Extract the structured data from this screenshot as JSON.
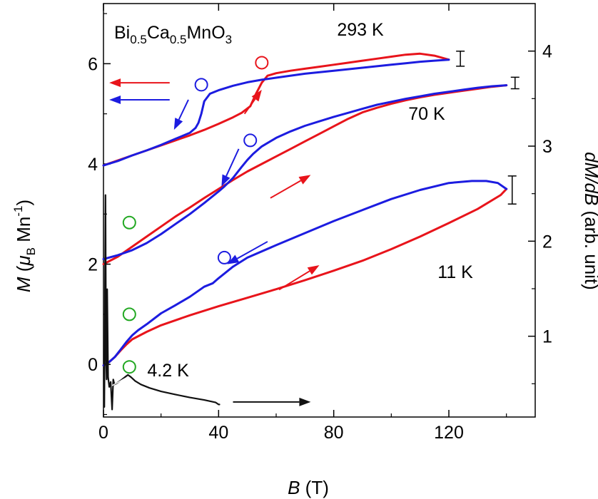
{
  "chart_data": {
    "type": "line",
    "title": "",
    "compound": {
      "base1": "Bi",
      "sub1": "0.5",
      "base2": "Ca",
      "sub2": "0.5",
      "base3": "MnO",
      "sub3": "3"
    },
    "xlabel": {
      "italic": "B",
      "rest": " (T)"
    },
    "ylabel_left": {
      "italic": "M",
      "open": " (",
      "mu": "μ",
      "mu_sub": "B",
      "unit": " Mn",
      "sup": "-1",
      "close": ")"
    },
    "ylabel_right": {
      "italic": "dM/dB",
      "rest": " (arb. unit)"
    },
    "xlim": [
      0,
      150
    ],
    "ylim_left": [
      -1.05,
      7.2
    ],
    "ylim_right": [
      0.15,
      4.5
    ],
    "xticks": [
      "0",
      "40",
      "80",
      "120"
    ],
    "yticks_left": [
      "0",
      "2",
      "4",
      "6"
    ],
    "yticks_right": [
      "1",
      "2",
      "3",
      "4"
    ],
    "colors": {
      "up_sweep": "#e8141b",
      "down_sweep": "#1c1ce0",
      "derivative": "#111111",
      "marker_green": "#22a822"
    },
    "series": [
      {
        "name": "293 K",
        "label": "293 K",
        "up": {
          "x": [
            0,
            5,
            10,
            15,
            20,
            25,
            30,
            35,
            40,
            45,
            48,
            51,
            53,
            55,
            57,
            60,
            65,
            70,
            75,
            80,
            85,
            90,
            95,
            100,
            105,
            110,
            115,
            120
          ],
          "y": [
            3.97,
            4.07,
            4.17,
            4.27,
            4.37,
            4.47,
            4.57,
            4.68,
            4.8,
            4.93,
            5.02,
            5.15,
            5.4,
            5.62,
            5.76,
            5.81,
            5.86,
            5.9,
            5.94,
            5.98,
            6.02,
            6.06,
            6.1,
            6.14,
            6.18,
            6.2,
            6.16,
            6.08
          ]
        },
        "down": {
          "x": [
            120,
            115,
            110,
            105,
            100,
            90,
            80,
            70,
            60,
            55,
            50,
            45,
            40,
            37,
            35,
            34,
            33,
            32,
            30,
            25,
            20,
            15,
            10,
            5,
            0
          ],
          "y": [
            6.08,
            6.06,
            6.04,
            6.01,
            5.98,
            5.92,
            5.86,
            5.8,
            5.72,
            5.68,
            5.63,
            5.56,
            5.47,
            5.4,
            5.25,
            5.0,
            4.82,
            4.72,
            4.62,
            4.5,
            4.38,
            4.27,
            4.17,
            4.06,
            3.97
          ]
        },
        "error_bar": {
          "x": 124,
          "y_low": 5.95,
          "y_high": 6.25
        }
      },
      {
        "name": "70 K",
        "label": "70 K",
        "up": {
          "x": [
            0,
            5,
            10,
            15,
            20,
            25,
            30,
            35,
            40,
            45,
            50,
            55,
            60,
            65,
            70,
            75,
            80,
            85,
            90,
            95,
            100,
            105,
            110,
            115,
            120,
            125,
            130,
            135,
            140
          ],
          "y": [
            2.0,
            2.15,
            2.35,
            2.55,
            2.75,
            2.95,
            3.13,
            3.32,
            3.5,
            3.68,
            3.85,
            4.0,
            4.15,
            4.3,
            4.45,
            4.6,
            4.75,
            4.9,
            5.03,
            5.12,
            5.2,
            5.27,
            5.33,
            5.38,
            5.42,
            5.46,
            5.5,
            5.54,
            5.57
          ]
        },
        "down": {
          "x": [
            140,
            135,
            130,
            125,
            120,
            115,
            110,
            105,
            100,
            95,
            90,
            85,
            80,
            75,
            70,
            65,
            60,
            55,
            52,
            50,
            48,
            45,
            42,
            40,
            35,
            30,
            25,
            20,
            15,
            10,
            5,
            0
          ],
          "y": [
            5.57,
            5.55,
            5.52,
            5.48,
            5.44,
            5.4,
            5.35,
            5.3,
            5.24,
            5.18,
            5.1,
            5.02,
            4.94,
            4.85,
            4.76,
            4.65,
            4.52,
            4.35,
            4.2,
            4.08,
            3.94,
            3.72,
            3.55,
            3.45,
            3.22,
            3.0,
            2.8,
            2.6,
            2.42,
            2.28,
            2.18,
            2.1
          ]
        },
        "error_bar": {
          "x": 143,
          "y_low": 5.5,
          "y_high": 5.73
        }
      },
      {
        "name": "11 K",
        "label": "11 K",
        "up": {
          "x": [
            0,
            2,
            4,
            6,
            8,
            10,
            15,
            20,
            30,
            40,
            50,
            60,
            70,
            80,
            90,
            100,
            110,
            120,
            130,
            138,
            140
          ],
          "y": [
            -0.02,
            0.05,
            0.15,
            0.28,
            0.4,
            0.5,
            0.65,
            0.78,
            0.98,
            1.16,
            1.33,
            1.5,
            1.68,
            1.87,
            2.07,
            2.3,
            2.55,
            2.82,
            3.1,
            3.38,
            3.5
          ]
        },
        "down": {
          "x": [
            140,
            137,
            133,
            128,
            120,
            110,
            100,
            90,
            80,
            70,
            60,
            50,
            45,
            40,
            38,
            35,
            30,
            25,
            20,
            15,
            12,
            10,
            8,
            6,
            4,
            2,
            0
          ],
          "y": [
            3.5,
            3.62,
            3.66,
            3.66,
            3.62,
            3.48,
            3.3,
            3.08,
            2.86,
            2.62,
            2.38,
            2.13,
            1.95,
            1.72,
            1.62,
            1.55,
            1.35,
            1.18,
            1.02,
            0.8,
            0.68,
            0.58,
            0.45,
            0.3,
            0.15,
            0.05,
            -0.02
          ]
        },
        "error_bar": {
          "x": 142,
          "y_low": 3.2,
          "y_high": 3.76
        }
      }
    ],
    "derivative": {
      "name": "4.2 K",
      "label": "4.2 K",
      "x": [
        0.3,
        0.5,
        0.7,
        0.9,
        1.1,
        1.3,
        1.6,
        2.0,
        2.5,
        3.0,
        3.4,
        3.8,
        4.5,
        6,
        7.5,
        8.5,
        9.5,
        11,
        13,
        16,
        20,
        25,
        30,
        35,
        39,
        40,
        40.3
      ],
      "y": [
        -0.85,
        1.2,
        3.38,
        0.2,
        -0.3,
        1.5,
        -0.25,
        -0.45,
        -0.35,
        -0.9,
        -0.3,
        -0.4,
        -0.38,
        -0.32,
        -0.25,
        -0.21,
        -0.25,
        -0.33,
        -0.4,
        -0.47,
        -0.54,
        -0.6,
        -0.66,
        -0.71,
        -0.76,
        -0.8,
        -0.8
      ]
    },
    "circle_markers": {
      "red": [
        {
          "x": 55,
          "y": 6.02
        }
      ],
      "blue": [
        {
          "x": 34,
          "y": 5.58
        },
        {
          "x": 51,
          "y": 4.47
        },
        {
          "x": 42,
          "y": 2.13
        }
      ],
      "green": [
        {
          "x": 9,
          "y": 2.83
        },
        {
          "x": 9,
          "y": 1.0
        },
        {
          "x": 9,
          "y": -0.05
        }
      ]
    },
    "arrows": [
      {
        "color": "red",
        "from": [
          23,
          5.62
        ],
        "to": [
          2,
          5.62
        ]
      },
      {
        "color": "blue",
        "from": [
          23,
          5.28
        ],
        "to": [
          2,
          5.28
        ]
      },
      {
        "color": "blue",
        "from": [
          29.5,
          5.28
        ],
        "to": [
          24.5,
          4.68
        ]
      },
      {
        "color": "red",
        "from": [
          49,
          5.0
        ],
        "to": [
          55,
          5.48
        ]
      },
      {
        "color": "blue",
        "from": [
          47,
          4.3
        ],
        "to": [
          41,
          3.55
        ]
      },
      {
        "color": "red",
        "from": [
          58,
          3.32
        ],
        "to": [
          72,
          3.78
        ]
      },
      {
        "color": "blue",
        "from": [
          57,
          2.45
        ],
        "to": [
          43,
          2.0
        ]
      },
      {
        "color": "red",
        "from": [
          61,
          1.49
        ],
        "to": [
          75,
          1.98
        ]
      },
      {
        "color": "black",
        "from": [
          45,
          -0.75
        ],
        "to": [
          72,
          -0.75
        ]
      }
    ]
  }
}
